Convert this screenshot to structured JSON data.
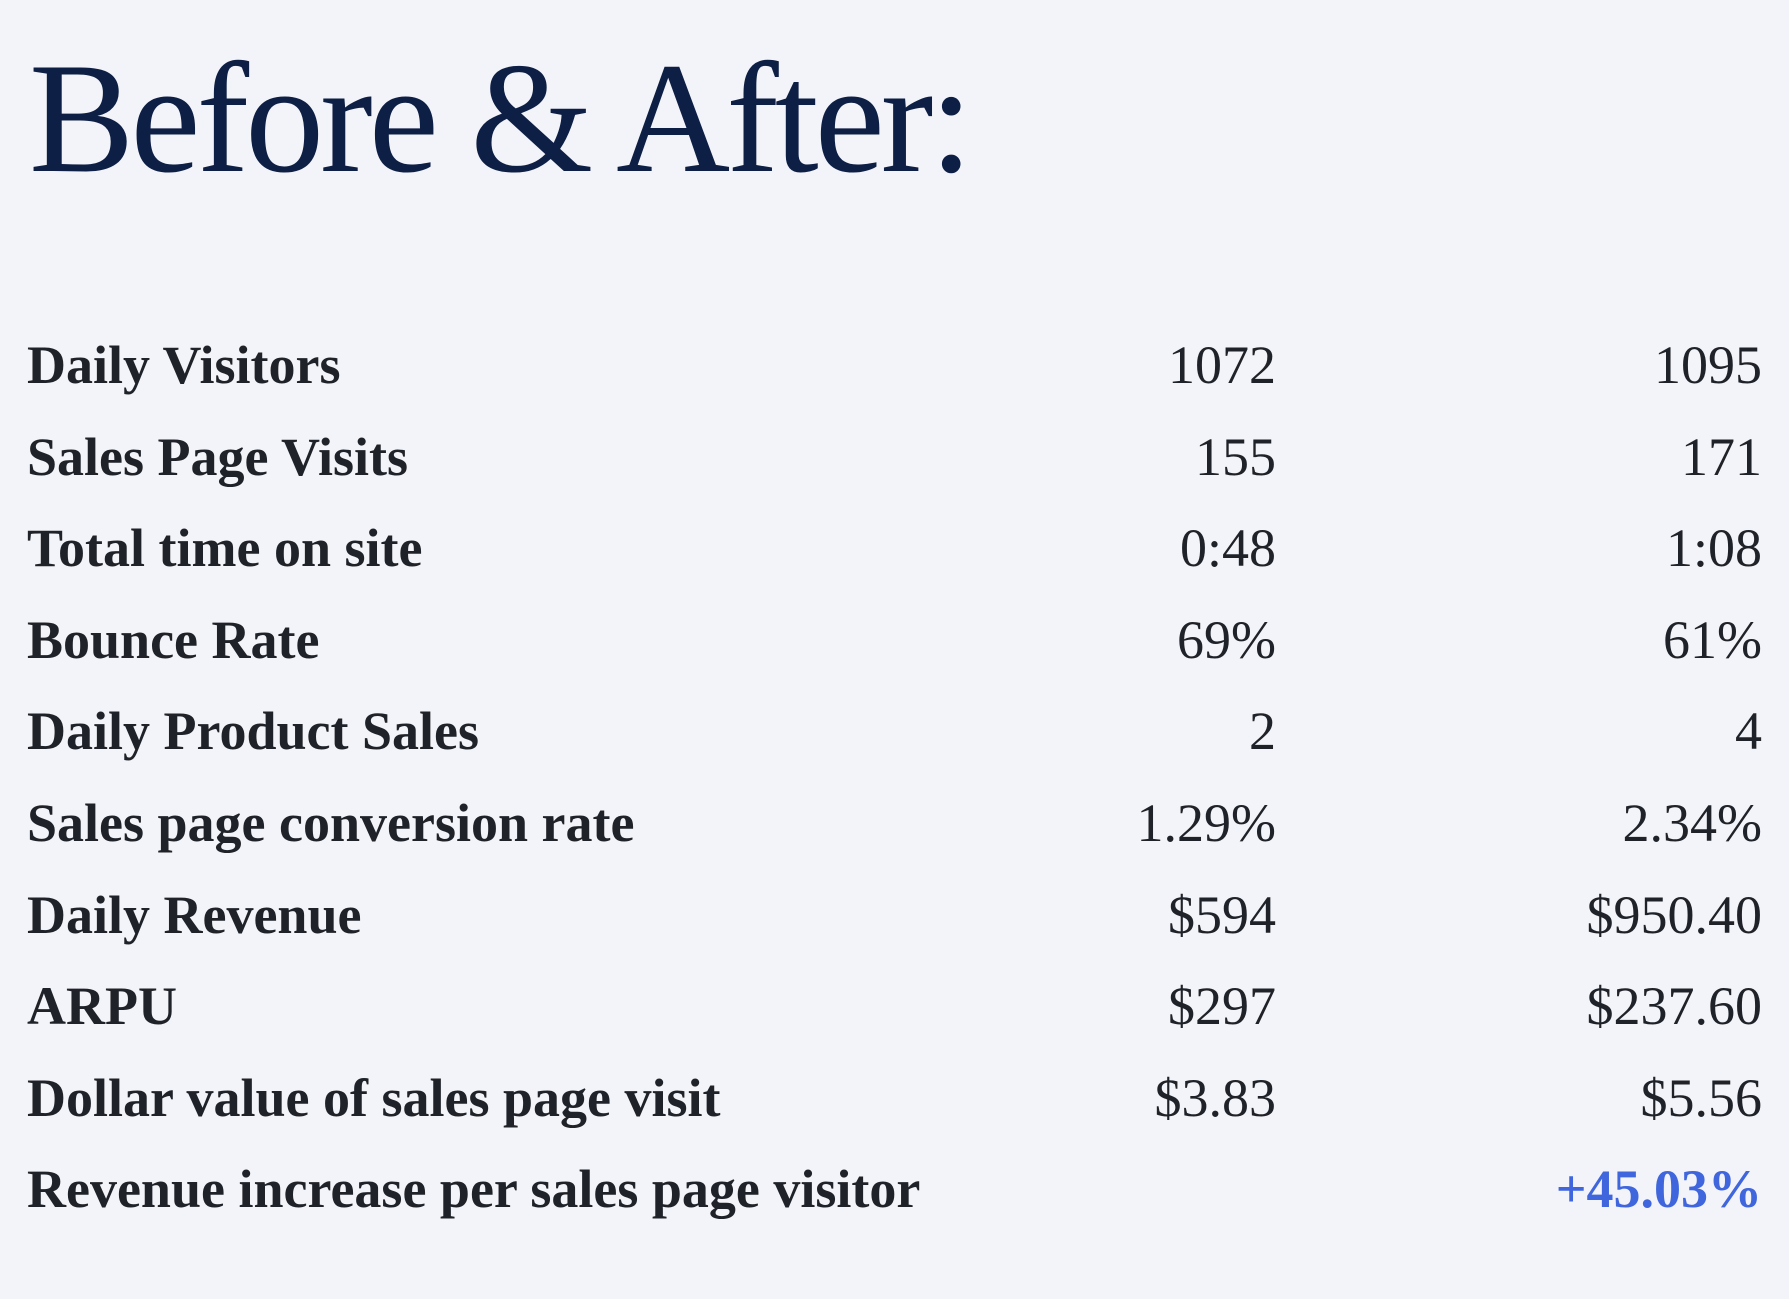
{
  "title": "Before & After:",
  "accent_color": "#3f66dc",
  "rows": [
    {
      "label": "Daily Visitors",
      "before": "1072",
      "after": "1095"
    },
    {
      "label": "Sales Page Visits",
      "before": "155",
      "after": "171"
    },
    {
      "label": "Total time on site",
      "before": "0:48",
      "after": "1:08"
    },
    {
      "label": "Bounce Rate",
      "before": "69%",
      "after": "61%"
    },
    {
      "label": "Daily Product Sales",
      "before": "2",
      "after": "4"
    },
    {
      "label": "Sales page conversion rate",
      "before": "1.29%",
      "after": "2.34%"
    },
    {
      "label": "Daily Revenue",
      "before": "$594",
      "after": "$950.40"
    },
    {
      "label": "ARPU",
      "before": "$297",
      "after": "$237.60"
    },
    {
      "label": "Dollar value of sales page visit",
      "before": "$3.83",
      "after": "$5.56"
    },
    {
      "label": "Revenue increase per sales page visitor",
      "before": "",
      "after": "+45.03%"
    }
  ]
}
